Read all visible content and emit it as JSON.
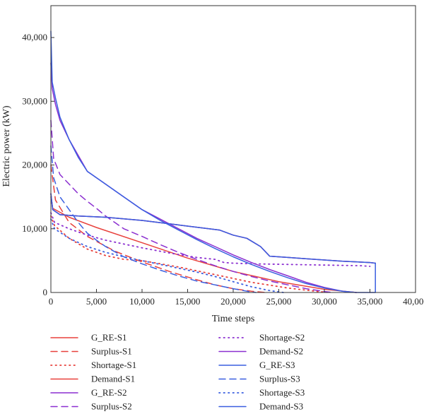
{
  "chart_data": {
    "type": "line",
    "title": "",
    "xlabel": "Time steps",
    "ylabel": "Electric power (kW)",
    "xlim": [
      0,
      40000
    ],
    "ylim": [
      0,
      45000
    ],
    "xticks": [
      0,
      5000,
      10000,
      15000,
      20000,
      25000,
      30000,
      35000,
      40000
    ],
    "xtick_labels": [
      "0",
      "5,000",
      "10,000",
      "15,000",
      "20,000",
      "25,000",
      "30,000",
      "35,000",
      "40,000"
    ],
    "yticks": [
      0,
      10000,
      20000,
      30000,
      40000
    ],
    "ytick_labels": [
      "0",
      "10,000",
      "20,000",
      "30,000",
      "40,000"
    ],
    "grid": false,
    "legend_position": "below",
    "series": [
      {
        "name": "G_RE-S1",
        "color": "#e8413c",
        "dash": "solid",
        "x": [
          0,
          200,
          1000,
          3000,
          6000,
          10000,
          14000,
          18500,
          20000,
          21500,
          23000,
          24000,
          26000,
          28000,
          30000,
          32000,
          35000,
          35600
        ],
        "y": [
          15500,
          13000,
          12200,
          12000,
          11800,
          11300,
          10600,
          9800,
          9000,
          8500,
          7200,
          5700,
          5500,
          5300,
          5100,
          4900,
          4700,
          4600
        ]
      },
      {
        "name": "Surplus-S1",
        "color": "#e8413c",
        "dash": "dashed",
        "x": [
          0,
          500,
          2000,
          4000,
          7000,
          10000,
          13000,
          16000,
          18000,
          20000,
          22000,
          23500
        ],
        "y": [
          20000,
          14500,
          11000,
          8800,
          6500,
          4800,
          3300,
          2000,
          1200,
          600,
          200,
          0
        ]
      },
      {
        "name": "Shortage-S1",
        "color": "#e8413c",
        "dash": "dotted",
        "x": [
          0,
          400,
          2000,
          4000,
          6000,
          8000,
          10000,
          14000,
          18000,
          22000,
          26000,
          29000,
          30500
        ],
        "y": [
          12000,
          10500,
          8500,
          6800,
          5800,
          5200,
          5000,
          4000,
          2800,
          1600,
          700,
          200,
          0
        ]
      },
      {
        "name": "Demand-S1",
        "color": "#e8413c",
        "dash": "solid",
        "x": [
          0,
          200,
          2000,
          5000,
          10000,
          15000,
          20000,
          25000,
          30000,
          33500
        ],
        "y": [
          15000,
          13200,
          11800,
          10200,
          7800,
          5400,
          3300,
          1700,
          500,
          0
        ]
      },
      {
        "name": "G_RE-S2",
        "color": "#8b2fd0",
        "dash": "solid",
        "x": [
          0,
          200,
          1000,
          3000,
          6000,
          10000,
          14000,
          18500,
          20000,
          21500,
          23000,
          24000,
          26000,
          28000,
          30000,
          32000,
          35000,
          35600
        ],
        "y": [
          15500,
          13000,
          12200,
          12000,
          11800,
          11300,
          10600,
          9800,
          9000,
          8500,
          7200,
          5700,
          5500,
          5300,
          5100,
          4900,
          4700,
          4600
        ]
      },
      {
        "name": "Surplus-S2",
        "color": "#8b2fd0",
        "dash": "dashed",
        "x": [
          0,
          300,
          1000,
          2000,
          3000,
          4000,
          5000,
          6000,
          7000,
          8000,
          10000,
          12000,
          14000,
          16000,
          18000,
          20000,
          22000,
          24000,
          26000,
          28000,
          30000,
          31000
        ],
        "y": [
          27000,
          21000,
          18500,
          17000,
          15500,
          14300,
          13200,
          12000,
          11000,
          10000,
          8800,
          7500,
          6300,
          5200,
          4200,
          3300,
          2500,
          1800,
          1200,
          600,
          150,
          0
        ]
      },
      {
        "name": "Shortage-S2",
        "color": "#8b2fd0",
        "dash": "dotted",
        "x": [
          0,
          400,
          2000,
          4000,
          6000,
          8000,
          10000,
          13000,
          16000,
          18000,
          19000,
          20000,
          22000,
          26000,
          30000,
          34000,
          35000
        ],
        "y": [
          12500,
          11000,
          10000,
          9000,
          8200,
          7600,
          7000,
          6200,
          5500,
          5200,
          4700,
          4600,
          4500,
          4400,
          4300,
          4200,
          4100
        ]
      },
      {
        "name": "Demand-S2",
        "color": "#8b2fd0",
        "dash": "solid",
        "x": [
          0,
          150,
          500,
          1000,
          2000,
          3000,
          4000,
          5000,
          6000,
          8000,
          10000,
          12000,
          14000,
          16000,
          18000,
          20000,
          22000,
          24000,
          26000,
          28000,
          30000,
          32000,
          33500
        ],
        "y": [
          36000,
          32000,
          29500,
          27000,
          24000,
          21500,
          19000,
          18000,
          17000,
          15000,
          13000,
          11500,
          10000,
          8500,
          7200,
          5900,
          4700,
          3600,
          2600,
          1600,
          800,
          200,
          0
        ]
      },
      {
        "name": "G_RE-S3",
        "color": "#3a5fe0",
        "dash": "solid",
        "x": [
          0,
          200,
          1000,
          3000,
          6000,
          10000,
          14000,
          18500,
          20000,
          21500,
          23000,
          24000,
          26000,
          28000,
          30000,
          32000,
          35000,
          35600
        ],
        "y": [
          15500,
          13000,
          12200,
          12000,
          11800,
          11300,
          10600,
          9800,
          9000,
          8500,
          7200,
          5700,
          5500,
          5300,
          5100,
          4900,
          4700,
          4600
        ]
      },
      {
        "name": "Surplus-S3",
        "color": "#3a5fe0",
        "dash": "dashed",
        "x": [
          0,
          300,
          1000,
          2000,
          3000,
          4000,
          5000,
          6000,
          8000,
          10000,
          12000,
          14000,
          16000,
          18000,
          20000,
          21500,
          22500
        ],
        "y": [
          23000,
          18000,
          15000,
          13000,
          11000,
          9300,
          8200,
          7200,
          5600,
          4500,
          3500,
          2600,
          1800,
          1200,
          600,
          200,
          0
        ]
      },
      {
        "name": "Shortage-S3",
        "color": "#3a5fe0",
        "dash": "dotted",
        "x": [
          0,
          400,
          2000,
          4000,
          6000,
          8000,
          10000,
          12000,
          14000,
          16000,
          18000,
          20000,
          22000,
          24000,
          25500
        ],
        "y": [
          11500,
          10000,
          8500,
          7200,
          6300,
          5600,
          5000,
          4400,
          3800,
          3200,
          2500,
          1700,
          900,
          300,
          0
        ]
      },
      {
        "name": "Demand-S3",
        "color": "#3a5fe0",
        "dash": "solid",
        "x": [
          0,
          150,
          500,
          1000,
          2000,
          3000,
          4000,
          5000,
          6000,
          8000,
          10000,
          12000,
          14000,
          16000,
          18000,
          20000,
          22000,
          24000,
          26000,
          28000,
          30000,
          32000,
          33500,
          35000,
          35600,
          35600
        ],
        "y": [
          41000,
          33000,
          30500,
          27500,
          24000,
          21200,
          19000,
          18000,
          17000,
          15000,
          13000,
          11300,
          9800,
          8300,
          6900,
          5600,
          4400,
          3300,
          2300,
          1400,
          700,
          200,
          0,
          0,
          0,
          4600
        ]
      }
    ]
  }
}
